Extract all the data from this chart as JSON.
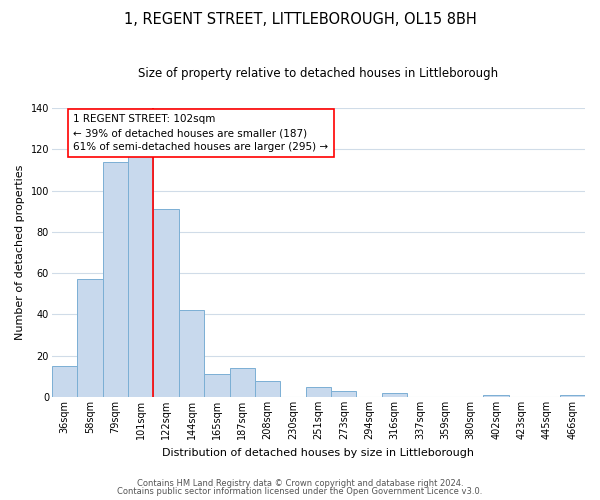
{
  "title": "1, REGENT STREET, LITTLEBOROUGH, OL15 8BH",
  "subtitle": "Size of property relative to detached houses in Littleborough",
  "xlabel": "Distribution of detached houses by size in Littleborough",
  "ylabel": "Number of detached properties",
  "bar_color": "#c8d9ed",
  "bar_edge_color": "#7bafd4",
  "categories": [
    "36sqm",
    "58sqm",
    "79sqm",
    "101sqm",
    "122sqm",
    "144sqm",
    "165sqm",
    "187sqm",
    "208sqm",
    "230sqm",
    "251sqm",
    "273sqm",
    "294sqm",
    "316sqm",
    "337sqm",
    "359sqm",
    "380sqm",
    "402sqm",
    "423sqm",
    "445sqm",
    "466sqm"
  ],
  "values": [
    15,
    57,
    114,
    119,
    91,
    42,
    11,
    14,
    8,
    0,
    5,
    3,
    0,
    2,
    0,
    0,
    0,
    1,
    0,
    0,
    1
  ],
  "ylim": [
    0,
    140
  ],
  "yticks": [
    0,
    20,
    40,
    60,
    80,
    100,
    120,
    140
  ],
  "property_line_label": "1 REGENT STREET: 102sqm",
  "annotation_line1": "← 39% of detached houses are smaller (187)",
  "annotation_line2": "61% of semi-detached houses are larger (295) →",
  "footnote1": "Contains HM Land Registry data © Crown copyright and database right 2024.",
  "footnote2": "Contains public sector information licensed under the Open Government Licence v3.0.",
  "background_color": "#ffffff",
  "grid_color": "#d0dce8",
  "title_fontsize": 10.5,
  "subtitle_fontsize": 8.5,
  "axis_label_fontsize": 8,
  "tick_fontsize": 7,
  "annotation_fontsize": 7.5,
  "footnote_fontsize": 6
}
